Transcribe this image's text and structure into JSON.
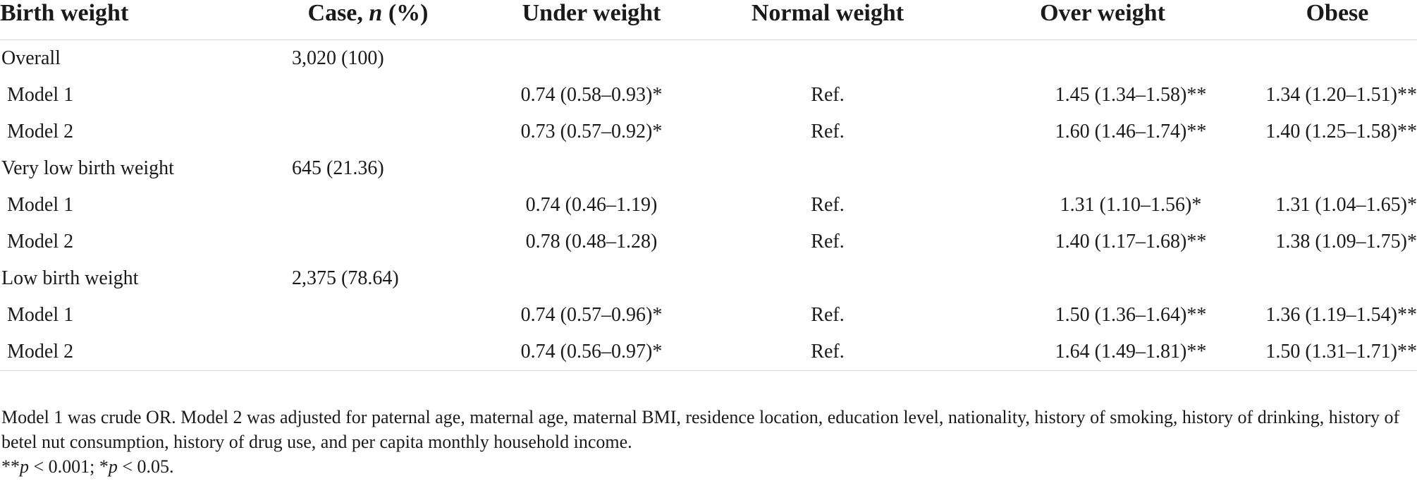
{
  "headers": [
    "Birth weight",
    "Case, n (%)",
    "Under weight",
    "Normal weight",
    "Over weight",
    "Obese"
  ],
  "rows": [
    {
      "label": "Overall",
      "case": "3,020 (100)",
      "under": "",
      "normal": "",
      "over": "",
      "obese": "",
      "kind": "group"
    },
    {
      "label": "Model 1",
      "case": "",
      "under": "0.74 (0.58–0.93)*",
      "normal": "Ref.",
      "over": "1.45 (1.34–1.58)**",
      "obese": "1.34 (1.20–1.51)**",
      "kind": "model"
    },
    {
      "label": "Model 2",
      "case": "",
      "under": "0.73 (0.57–0.92)*",
      "normal": "Ref.",
      "over": "1.60 (1.46–1.74)**",
      "obese": "1.40 (1.25–1.58)**",
      "kind": "model"
    },
    {
      "label": "Very low birth weight",
      "case": "645 (21.36)",
      "under": "",
      "normal": "",
      "over": "",
      "obese": "",
      "kind": "group"
    },
    {
      "label": "Model 1",
      "case": "",
      "under": "0.74 (0.46–1.19)",
      "normal": "Ref.",
      "over": "1.31 (1.10–1.56)*",
      "obese": "1.31 (1.04–1.65)*",
      "kind": "model"
    },
    {
      "label": "Model 2",
      "case": "",
      "under": "0.78 (0.48–1.28)",
      "normal": "Ref.",
      "over": "1.40 (1.17–1.68)**",
      "obese": "1.38 (1.09–1.75)*",
      "kind": "model"
    },
    {
      "label": "Low birth weight",
      "case": "2,375 (78.64)",
      "under": "",
      "normal": "",
      "over": "",
      "obese": "",
      "kind": "group"
    },
    {
      "label": "Model 1",
      "case": "",
      "under": "0.74 (0.57–0.96)*",
      "normal": "Ref.",
      "over": "1.50 (1.36–1.64)**",
      "obese": "1.36 (1.19–1.54)**",
      "kind": "model"
    },
    {
      "label": "Model 2",
      "case": "",
      "under": "0.74 (0.56–0.97)*",
      "normal": "Ref.",
      "over": "1.64 (1.49–1.81)**",
      "obese": "1.50 (1.31–1.71)**",
      "kind": "model"
    }
  ],
  "notes": {
    "line1": "Model 1 was crude OR. Model 2 was adjusted for paternal age, maternal age, maternal BMI, residence location, education level, nationality, history of smoking, history of drinking, history of betel nut consumption, history of drug use, and per capita monthly household income.",
    "line2": "**p < 0.001; *p < 0.05."
  }
}
